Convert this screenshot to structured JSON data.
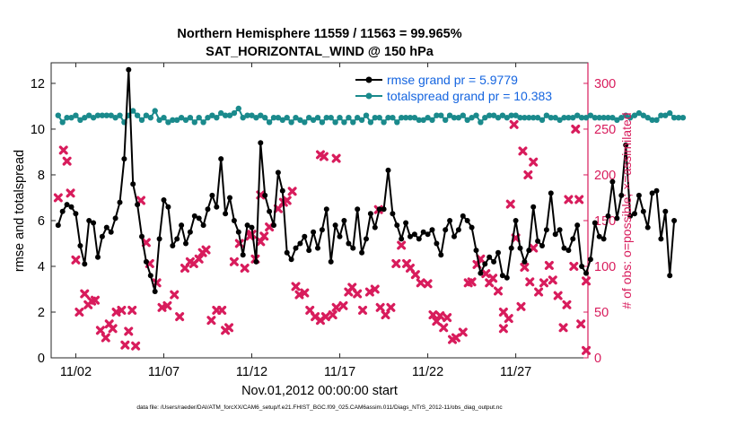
{
  "chart_data": {
    "type": "line",
    "title_line1": "Northern Hemisphere 11559 / 11563 = 99.965%",
    "title_line2": "SAT_HORIZONTAL_WIND @ 150 hPa",
    "xlabel": "Nov.01,2012 00:00:00 start",
    "ylabel_left": "rmse and totalspread",
    "ylabel_right": "# of obs: o=possible; ×=assimilated",
    "footer": "data file: /Users/raeder/DAI/ATM_forcXX/CAM6_setup/f.e21.FHIST_BGC.f09_025.CAM6assim.011/Diags_NTrS_2012-11/obs_diag_output.nc",
    "xlim": [
      0.6,
      31.1
    ],
    "ylim_left": [
      0,
      12.9
    ],
    "ylim_right": [
      0,
      322.5
    ],
    "x_ticks": [
      {
        "value": 2,
        "label": "11/02"
      },
      {
        "value": 7,
        "label": "11/07"
      },
      {
        "value": 12,
        "label": "11/12"
      },
      {
        "value": 17,
        "label": "11/17"
      },
      {
        "value": 22,
        "label": "11/22"
      },
      {
        "value": 27,
        "label": "11/27"
      }
    ],
    "y_ticks_left": [
      0,
      2,
      4,
      6,
      8,
      10,
      12
    ],
    "y_ticks_right": [
      0,
      50,
      100,
      150,
      200,
      250,
      300
    ],
    "colors": {
      "rmse": "#000000",
      "spread": "#1a8a8c",
      "obs": "#d81c5c",
      "legend_text": "#1565e0",
      "right_axis": "#d81c5c"
    },
    "legend": [
      {
        "label": "rmse grand pr = 5.9779",
        "series": "rmse"
      },
      {
        "label": "totalspread grand pr = 10.383",
        "series": "spread"
      }
    ],
    "series": [
      {
        "name": "rmse",
        "axis": "left",
        "x_start": 1.0,
        "x_step": 0.25,
        "values": [
          5.8,
          6.4,
          6.7,
          6.6,
          6.3,
          4.9,
          4.1,
          6.0,
          5.9,
          4.4,
          5.3,
          5.7,
          5.5,
          6.1,
          6.8,
          8.7,
          12.6,
          7.6,
          6.7,
          5.3,
          4.2,
          3.6,
          2.9,
          5.2,
          6.9,
          6.6,
          4.9,
          5.2,
          5.8,
          5.0,
          5.5,
          6.2,
          6.1,
          5.8,
          6.5,
          7.1,
          6.6,
          8.7,
          6.3,
          7.0,
          6.0,
          5.5,
          4.5,
          5.8,
          5.7,
          4.2,
          9.4,
          7.1,
          6.4,
          5.8,
          8.1,
          7.3,
          4.6,
          4.3,
          4.8,
          5.0,
          5.3,
          4.7,
          5.5,
          4.8,
          5.6,
          6.5,
          4.2,
          5.8,
          5.3,
          6.0,
          5.0,
          4.8,
          6.5,
          4.6,
          5.2,
          6.3,
          5.7,
          6.5,
          6.5,
          8.2,
          6.3,
          5.8,
          5.2,
          5.9,
          5.3,
          5.4,
          5.2,
          5.5,
          5.4,
          5.6,
          5.0,
          4.5,
          5.6,
          6.0,
          5.3,
          5.6,
          6.2,
          6.0,
          5.7,
          4.7,
          3.7,
          4.1,
          4.4,
          4.2,
          4.6,
          3.6,
          3.5,
          4.8,
          6.0,
          4.8,
          4.2,
          4.7,
          6.6,
          5.1,
          4.9,
          5.6,
          7.2,
          5.4,
          5.6,
          4.8,
          4.7,
          5.2,
          5.8,
          4.0,
          3.7,
          4.3,
          5.9,
          5.3,
          5.2,
          6.2,
          7.7,
          6.1,
          7.1,
          9.3,
          6.2,
          6.3,
          7.1,
          6.4,
          5.7,
          7.2,
          7.3,
          5.2,
          6.4,
          3.6,
          6.0
        ]
      },
      {
        "name": "totalspread",
        "axis": "left",
        "x_start": 1.0,
        "x_step": 0.25,
        "values": [
          10.6,
          10.3,
          10.5,
          10.5,
          10.6,
          10.4,
          10.5,
          10.6,
          10.5,
          10.6,
          10.6,
          10.6,
          10.6,
          10.5,
          10.6,
          10.3,
          10.6,
          10.8,
          10.6,
          10.4,
          10.6,
          10.5,
          10.8,
          10.4,
          10.5,
          10.3,
          10.4,
          10.4,
          10.5,
          10.4,
          10.5,
          10.3,
          10.5,
          10.3,
          10.5,
          10.6,
          10.5,
          10.7,
          10.6,
          10.6,
          10.7,
          10.9,
          10.5,
          10.6,
          10.6,
          10.5,
          10.6,
          10.5,
          10.3,
          10.5,
          10.5,
          10.4,
          10.5,
          10.3,
          10.5,
          10.4,
          10.3,
          10.5,
          10.4,
          10.5,
          10.3,
          10.5,
          10.5,
          10.3,
          10.5,
          10.3,
          10.5,
          10.3,
          10.5,
          10.4,
          10.6,
          10.3,
          10.5,
          10.5,
          10.3,
          10.5,
          10.5,
          10.3,
          10.5,
          10.5,
          10.5,
          10.5,
          10.4,
          10.4,
          10.5,
          10.4,
          10.6,
          10.6,
          10.4,
          10.6,
          10.5,
          10.5,
          10.6,
          10.4,
          10.5,
          10.6,
          10.3,
          10.5,
          10.6,
          10.6,
          10.5,
          10.6,
          10.5,
          10.6,
          10.6,
          10.5,
          10.5,
          10.5,
          10.5,
          10.5,
          10.4,
          10.6,
          10.5,
          10.5,
          10.4,
          10.5,
          10.5,
          10.5,
          10.6,
          10.5,
          10.5,
          10.6,
          10.5,
          10.5,
          10.5,
          10.5,
          10.5,
          10.4,
          10.5,
          10.6,
          10.5,
          10.6,
          10.7,
          10.6,
          10.5,
          10.4,
          10.4,
          10.6,
          10.6,
          10.7,
          10.5,
          10.5,
          10.5
        ]
      },
      {
        "name": "obs_assimilated",
        "axis": "right",
        "marker": "x",
        "points": [
          [
            1.0,
            175
          ],
          [
            1.3,
            227
          ],
          [
            1.5,
            215
          ],
          [
            1.7,
            180
          ],
          [
            2.0,
            107
          ],
          [
            2.2,
            50
          ],
          [
            2.5,
            70
          ],
          [
            2.7,
            58
          ],
          [
            2.9,
            62
          ],
          [
            3.1,
            63
          ],
          [
            3.4,
            30
          ],
          [
            3.7,
            22
          ],
          [
            3.9,
            37
          ],
          [
            4.1,
            32
          ],
          [
            4.3,
            50
          ],
          [
            4.6,
            52
          ],
          [
            4.8,
            14
          ],
          [
            5.0,
            29
          ],
          [
            5.2,
            52
          ],
          [
            5.4,
            13
          ],
          [
            5.7,
            172
          ],
          [
            6.0,
            126
          ],
          [
            6.2,
            103
          ],
          [
            6.6,
            82
          ],
          [
            6.9,
            55
          ],
          [
            7.2,
            57
          ],
          [
            7.6,
            69
          ],
          [
            7.9,
            45
          ],
          [
            8.2,
            98
          ],
          [
            8.5,
            105
          ],
          [
            8.7,
            103
          ],
          [
            9.0,
            108
          ],
          [
            9.2,
            115
          ],
          [
            9.4,
            118
          ],
          [
            9.7,
            41
          ],
          [
            10.0,
            52
          ],
          [
            10.3,
            52
          ],
          [
            10.5,
            30
          ],
          [
            10.7,
            33
          ],
          [
            11.0,
            105
          ],
          [
            11.3,
            125
          ],
          [
            11.6,
            98
          ],
          [
            11.9,
            133
          ],
          [
            12.2,
            108
          ],
          [
            12.5,
            127
          ],
          [
            12.7,
            133
          ],
          [
            13.0,
            143
          ],
          [
            13.5,
            163
          ],
          [
            13.8,
            170
          ],
          [
            14.0,
            172
          ],
          [
            14.3,
            182
          ],
          [
            14.5,
            78
          ],
          [
            14.7,
            69
          ],
          [
            15.0,
            71
          ],
          [
            15.3,
            52
          ],
          [
            15.6,
            45
          ],
          [
            15.9,
            41
          ],
          [
            16.2,
            45
          ],
          [
            16.6,
            47
          ],
          [
            16.8,
            55
          ],
          [
            17.2,
            57
          ],
          [
            17.5,
            72
          ],
          [
            17.7,
            77
          ],
          [
            18.0,
            70
          ],
          [
            18.3,
            52
          ],
          [
            18.7,
            72
          ],
          [
            19.0,
            75
          ],
          [
            19.3,
            55
          ],
          [
            19.6,
            47
          ],
          [
            19.9,
            55
          ],
          [
            20.2,
            103
          ],
          [
            20.5,
            123
          ],
          [
            20.8,
            103
          ],
          [
            21.0,
            98
          ],
          [
            21.3,
            91
          ],
          [
            21.6,
            82
          ],
          [
            22.0,
            81
          ],
          [
            22.3,
            47
          ],
          [
            22.5,
            40
          ],
          [
            22.7,
            46
          ],
          [
            22.9,
            33
          ],
          [
            23.1,
            44
          ],
          [
            23.4,
            20
          ],
          [
            23.6,
            22
          ],
          [
            24.0,
            28
          ],
          [
            24.3,
            82
          ],
          [
            24.5,
            83
          ],
          [
            24.8,
            102
          ],
          [
            25.0,
            108
          ],
          [
            25.3,
            92
          ],
          [
            25.5,
            82
          ],
          [
            25.7,
            87
          ],
          [
            26.0,
            73
          ],
          [
            26.3,
            32
          ],
          [
            26.6,
            43
          ],
          [
            27.0,
            131
          ],
          [
            27.3,
            56
          ],
          [
            27.5,
            99
          ],
          [
            27.8,
            83
          ],
          [
            28.0,
            120
          ],
          [
            28.3,
            72
          ],
          [
            28.6,
            82
          ],
          [
            28.9,
            101
          ],
          [
            29.1,
            85
          ],
          [
            29.4,
            68
          ],
          [
            29.7,
            33
          ],
          [
            29.9,
            58
          ],
          [
            30.3,
            100
          ],
          [
            30.7,
            37
          ],
          [
            31.0,
            84
          ]
        ]
      },
      {
        "name": "obs_possible_pink",
        "axis": "right",
        "marker": "x",
        "points": [
          [
            12.0,
            135
          ],
          [
            12.5,
            178
          ],
          [
            15.9,
            222
          ],
          [
            16.1,
            220
          ],
          [
            16.8,
            218
          ],
          [
            19.2,
            162
          ],
          [
            26.3,
            50
          ],
          [
            26.7,
            168
          ],
          [
            26.9,
            255
          ],
          [
            27.4,
            226
          ],
          [
            27.7,
            200
          ],
          [
            28.0,
            214
          ],
          [
            30.0,
            173
          ],
          [
            30.4,
            250
          ],
          [
            30.6,
            173
          ],
          [
            31.0,
            8
          ]
        ]
      }
    ]
  }
}
